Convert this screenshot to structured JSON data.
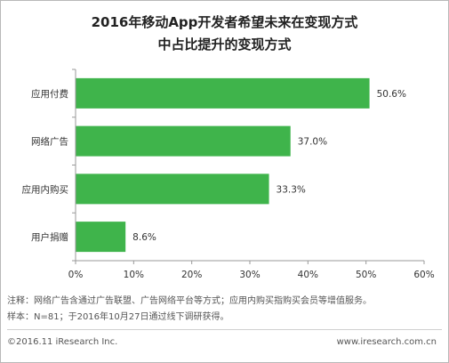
{
  "chart_data": {
    "type": "bar",
    "orientation": "horizontal",
    "title_lines": [
      "2016年移动App开发者希望未来在变现方式",
      "中占比提升的变现方式"
    ],
    "categories": [
      "应用付费",
      "网络广告",
      "应用内购买",
      "用户捐赠"
    ],
    "values": [
      50.6,
      37.0,
      33.3,
      8.6
    ],
    "value_labels": [
      "50.6%",
      "37.0%",
      "33.3%",
      "8.6%"
    ],
    "xlim": [
      0,
      60
    ],
    "x_ticks": [
      "0%",
      "10%",
      "20%",
      "30%",
      "40%",
      "50%",
      "60%"
    ],
    "grid": false,
    "bar_color": "#3fb44b"
  },
  "notes": [
    "注释：网络广告含通过广告联盟、广告网络平台等方式；应用内购买指购买会员等增值服务。",
    "样本：N=81；于2016年10月27日通过线下调研获得。"
  ],
  "footer": {
    "copyright": "©2016.11 iResearch Inc.",
    "website": "www.iresearch.com.cn"
  }
}
